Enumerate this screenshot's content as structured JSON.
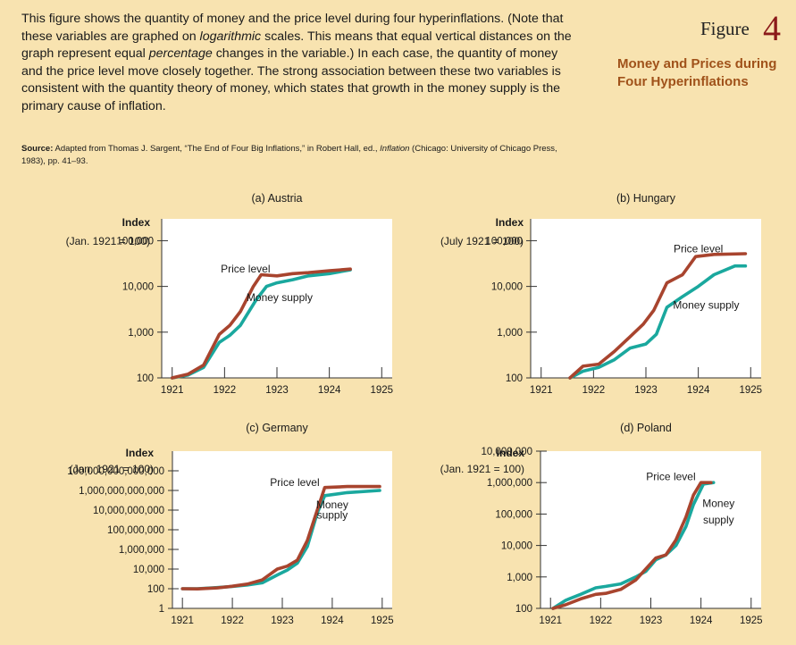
{
  "header": {
    "caption_parts": [
      "This figure shows the quantity of money and the price level during four hyperinflations. (Note that these variables are graphed on ",
      "logarithmic",
      " scales. This means that equal vertical distances on the graph represent equal ",
      "percentage",
      " changes in the variable.) In each case, the quantity of money and the price level move closely together. The strong association between these two variables is consistent with the quantity theory of money, which states that growth in the money supply is the primary cause of inflation."
    ],
    "source_label": "Source:",
    "source_text_1": " Adapted from Thomas J. Sargent, “The End of Four Big Inflations,” in Robert Hall, ed., ",
    "source_italic": "Inflation",
    "source_text_2": " (Chicago: University of Chicago Press, 1983), pp. 41–93.",
    "figure_word": "Figure",
    "figure_number": "4",
    "figure_title": "Money and Prices during Four Hyperinflations"
  },
  "colors": {
    "price_level": "#a8442e",
    "money_supply": "#1aa89e",
    "plot_bg": "#ffffff",
    "page_bg": "#f8e3b0",
    "title_accent": "#a0521a",
    "figure_number": "#8b1a1a"
  },
  "chart_data": [
    {
      "type": "line",
      "title": "(a) Austria",
      "ylabel": "Index",
      "ylabel2": "(Jan. 1921 = 100)",
      "yscale": "log",
      "ylim": [
        100,
        300000
      ],
      "xlim": [
        1920.8,
        1925.2
      ],
      "xticks": [
        1921,
        1922,
        1923,
        1924,
        1925
      ],
      "yticks": [
        100,
        1000,
        10000,
        100000
      ],
      "ytick_labels": [
        "100",
        "1,000",
        "10,000",
        "100,000"
      ],
      "series": [
        {
          "name": "Price level",
          "points": [
            [
              1921.0,
              100
            ],
            [
              1921.3,
              120
            ],
            [
              1921.6,
              190
            ],
            [
              1921.9,
              900
            ],
            [
              1922.1,
              1400
            ],
            [
              1922.3,
              2800
            ],
            [
              1922.55,
              10000
            ],
            [
              1922.7,
              18000
            ],
            [
              1923.0,
              17000
            ],
            [
              1923.3,
              19000
            ],
            [
              1923.6,
              20000
            ],
            [
              1924.0,
              22000
            ],
            [
              1924.4,
              24000
            ]
          ]
        },
        {
          "name": "Money supply",
          "points": [
            [
              1921.0,
              100
            ],
            [
              1921.3,
              115
            ],
            [
              1921.6,
              170
            ],
            [
              1921.9,
              600
            ],
            [
              1922.1,
              850
            ],
            [
              1922.3,
              1400
            ],
            [
              1922.6,
              5000
            ],
            [
              1922.8,
              10000
            ],
            [
              1923.0,
              12000
            ],
            [
              1923.3,
              14000
            ],
            [
              1923.6,
              17000
            ],
            [
              1924.0,
              19000
            ],
            [
              1924.4,
              23000
            ]
          ]
        }
      ],
      "annotations": [
        {
          "text": "Price level",
          "x": 1922.4,
          "y": 20000
        },
        {
          "text": "Money supply",
          "x": 1923.05,
          "y": 4800
        }
      ]
    },
    {
      "type": "line",
      "title": "(b) Hungary",
      "ylabel": "Index",
      "ylabel2": "(July 1921 = 100)",
      "yscale": "log",
      "ylim": [
        100,
        300000
      ],
      "xlim": [
        1920.8,
        1925.2
      ],
      "xticks": [
        1921,
        1922,
        1923,
        1924,
        1925
      ],
      "yticks": [
        100,
        1000,
        10000,
        100000
      ],
      "ytick_labels": [
        "100",
        "1,000",
        "10,000",
        "100,000"
      ],
      "series": [
        {
          "name": "Price level",
          "points": [
            [
              1921.55,
              100
            ],
            [
              1921.8,
              180
            ],
            [
              1922.1,
              200
            ],
            [
              1922.4,
              380
            ],
            [
              1922.7,
              800
            ],
            [
              1922.95,
              1500
            ],
            [
              1923.15,
              3000
            ],
            [
              1923.4,
              12000
            ],
            [
              1923.7,
              18000
            ],
            [
              1923.95,
              45000
            ],
            [
              1924.3,
              50000
            ],
            [
              1924.9,
              52000
            ]
          ]
        },
        {
          "name": "Money supply",
          "points": [
            [
              1921.55,
              100
            ],
            [
              1921.8,
              140
            ],
            [
              1922.1,
              170
            ],
            [
              1922.4,
              250
            ],
            [
              1922.7,
              450
            ],
            [
              1923.0,
              550
            ],
            [
              1923.2,
              900
            ],
            [
              1923.4,
              3500
            ],
            [
              1923.7,
              6000
            ],
            [
              1924.0,
              10000
            ],
            [
              1924.3,
              18000
            ],
            [
              1924.7,
              28000
            ],
            [
              1924.9,
              28000
            ]
          ]
        }
      ],
      "annotations": [
        {
          "text": "Price level",
          "x": 1924.0,
          "y": 55000
        },
        {
          "text": "Money supply",
          "x": 1924.15,
          "y": 3300
        }
      ]
    },
    {
      "type": "line",
      "title": "(c) Germany",
      "ylabel": "Index",
      "ylabel2": "(Jan. 1921 = 100)",
      "yscale": "log",
      "ylim": [
        1,
        10000000000000000
      ],
      "xlim": [
        1920.8,
        1925.2
      ],
      "xticks": [
        1921,
        1922,
        1923,
        1924,
        1925
      ],
      "yticks": [
        1,
        100,
        10000,
        1000000,
        100000000,
        10000000000,
        1000000000000,
        100000000000000
      ],
      "ytick_labels": [
        "1",
        "100",
        "10,000",
        "1,000,000",
        "100,000,000",
        "10,000,000,000",
        "1,000,000,000,000",
        "100,000,000,000,000"
      ],
      "series": [
        {
          "name": "Price level",
          "points": [
            [
              1921.0,
              100
            ],
            [
              1921.3,
              95
            ],
            [
              1921.7,
              120
            ],
            [
              1922.0,
              180
            ],
            [
              1922.3,
              300
            ],
            [
              1922.6,
              800
            ],
            [
              1922.9,
              10000
            ],
            [
              1923.1,
              20000
            ],
            [
              1923.3,
              80000
            ],
            [
              1923.5,
              8000000
            ],
            [
              1923.7,
              10000000000
            ],
            [
              1923.85,
              2000000000000
            ],
            [
              1924.3,
              2500000000000
            ],
            [
              1924.95,
              2500000000000
            ]
          ]
        },
        {
          "name": "Money supply",
          "points": [
            [
              1921.0,
              100
            ],
            [
              1921.3,
              100
            ],
            [
              1921.7,
              130
            ],
            [
              1922.0,
              170
            ],
            [
              1922.3,
              240
            ],
            [
              1922.6,
              400
            ],
            [
              1922.9,
              2500
            ],
            [
              1923.1,
              8000
            ],
            [
              1923.3,
              40000
            ],
            [
              1923.5,
              2000000
            ],
            [
              1923.7,
              5000000000
            ],
            [
              1923.85,
              300000000000
            ],
            [
              1924.3,
              600000000000
            ],
            [
              1924.95,
              1000000000000
            ]
          ]
        }
      ],
      "annotations": [
        {
          "text": "Price level",
          "x": 1923.25,
          "y": 3000000000000
        },
        {
          "text": "Money",
          "x": 1924.0,
          "y": 15000000000
        },
        {
          "text": "supply",
          "x": 1924.0,
          "y": 1300000000
        }
      ]
    },
    {
      "type": "line",
      "title": "(d) Poland",
      "ylabel": "Index",
      "ylabel2": "(Jan. 1921 = 100)",
      "yscale": "log",
      "ylim": [
        100,
        10000000
      ],
      "xlim": [
        1920.8,
        1925.2
      ],
      "xticks": [
        1921,
        1922,
        1923,
        1924,
        1925
      ],
      "yticks": [
        100,
        1000,
        10000,
        100000,
        1000000,
        10000000
      ],
      "ytick_labels": [
        "100",
        "1,000",
        "10,000",
        "100,000",
        "1,000,000",
        "10,000,000"
      ],
      "series": [
        {
          "name": "Price level",
          "points": [
            [
              1921.05,
              100
            ],
            [
              1921.3,
              130
            ],
            [
              1921.6,
              200
            ],
            [
              1921.9,
              280
            ],
            [
              1922.1,
              300
            ],
            [
              1922.4,
              400
            ],
            [
              1922.7,
              800
            ],
            [
              1922.9,
              1800
            ],
            [
              1923.1,
              4000
            ],
            [
              1923.3,
              5000
            ],
            [
              1923.5,
              15000
            ],
            [
              1923.7,
              80000
            ],
            [
              1923.85,
              400000
            ],
            [
              1924.0,
              1000000
            ],
            [
              1924.2,
              1000000
            ]
          ]
        },
        {
          "name": "Money supply",
          "points": [
            [
              1921.05,
              100
            ],
            [
              1921.3,
              180
            ],
            [
              1921.6,
              280
            ],
            [
              1921.9,
              450
            ],
            [
              1922.1,
              500
            ],
            [
              1922.4,
              600
            ],
            [
              1922.7,
              1000
            ],
            [
              1922.9,
              1500
            ],
            [
              1923.1,
              3500
            ],
            [
              1923.3,
              5000
            ],
            [
              1923.5,
              10000
            ],
            [
              1923.7,
              40000
            ],
            [
              1923.85,
              200000
            ],
            [
              1924.05,
              900000
            ],
            [
              1924.25,
              1000000
            ]
          ]
        }
      ],
      "annotations": [
        {
          "text": "Price level",
          "x": 1923.4,
          "y": 1200000
        },
        {
          "text": "Money",
          "x": 1924.35,
          "y": 170000
        },
        {
          "text": "supply",
          "x": 1924.35,
          "y": 50000
        }
      ]
    }
  ]
}
